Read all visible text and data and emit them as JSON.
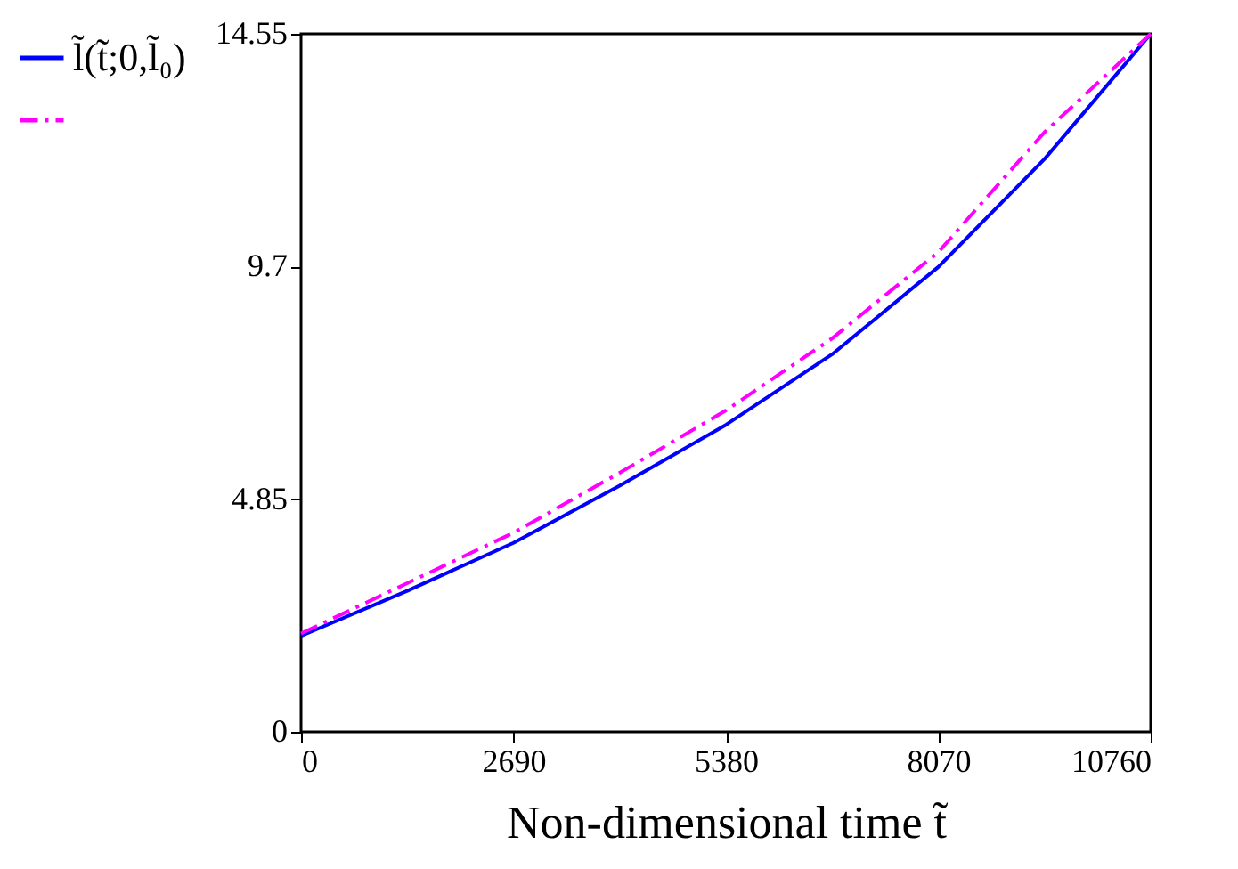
{
  "chart_data": {
    "type": "line",
    "xlabel": "Non-dimensional time t̃",
    "x": [
      0,
      1345,
      2690,
      4035,
      5380,
      6725,
      8070,
      9415,
      10760
    ],
    "series": [
      {
        "name": "l̃(t̃;0,l̃₀)",
        "color": "#0000ff",
        "line_style": "solid",
        "values": [
          2.0,
          2.94,
          3.94,
          5.13,
          6.4,
          7.87,
          9.69,
          11.94,
          14.55
        ]
      },
      {
        "color": "#ff00ff",
        "line_style": "dashed",
        "values": [
          2.05,
          3.1,
          4.15,
          5.4,
          6.7,
          8.2,
          10.0,
          12.5,
          14.55
        ]
      }
    ],
    "xlim": [
      0,
      10760
    ],
    "xticks": [
      0,
      2690,
      5380,
      8070,
      10760
    ],
    "ylim": [
      0,
      14.55
    ],
    "yticks": [
      0,
      4.85,
      9.7,
      14.55
    ],
    "grid": false,
    "legend": "left",
    "marker": "none"
  }
}
